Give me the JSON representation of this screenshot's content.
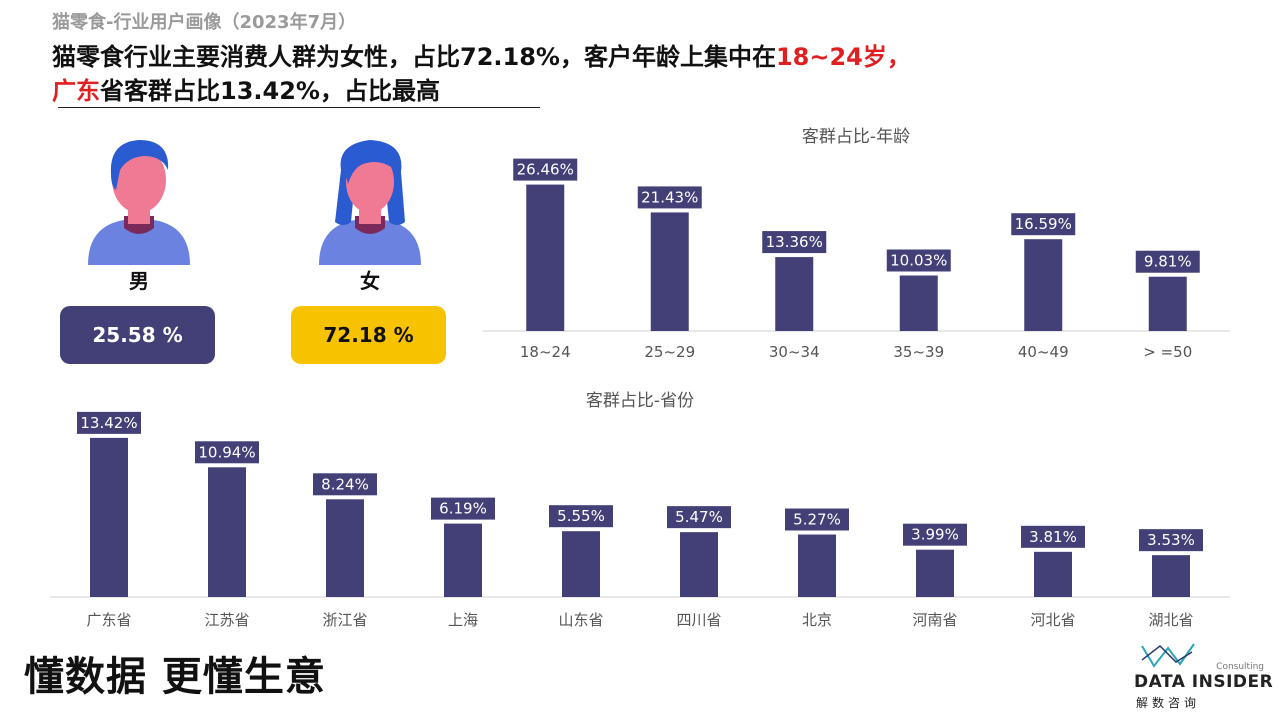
{
  "header": {
    "subtitle": "猫零食-行业用户画像（2023年7月）",
    "headline_part1": "猫零食行业主要消费人群为女性，占比72.18%，客户年龄上集中在",
    "headline_highlight1": "18~24岁，",
    "headline_highlight2": "广东",
    "headline_part2": "省客群占比13.42%，占比最高"
  },
  "gender": {
    "male_label": "男",
    "male_value": "25.58 %",
    "female_label": "女",
    "female_value": "72.18 %"
  },
  "colors": {
    "bar": "#434078",
    "female_accent": "#f7c300",
    "highlight_red": "#e02020"
  },
  "chart_data": [
    {
      "type": "bar",
      "title": "客群占比-年龄",
      "categories": [
        "18~24",
        "25~29",
        "30~34",
        "35~39",
        "40~49",
        "> =50"
      ],
      "values": [
        26.46,
        21.43,
        13.36,
        10.03,
        16.59,
        9.81
      ],
      "value_labels": [
        "26.46%",
        "21.43%",
        "13.36%",
        "10.03%",
        "16.59%",
        "9.81%"
      ],
      "ylim": [
        0,
        30
      ],
      "grid": false,
      "legend": "none"
    },
    {
      "type": "bar",
      "title": "客群占比-省份",
      "categories": [
        "广东省",
        "江苏省",
        "浙江省",
        "上海",
        "山东省",
        "四川省",
        "北京",
        "河南省",
        "河北省",
        "湖北省"
      ],
      "values": [
        13.42,
        10.94,
        8.24,
        6.19,
        5.55,
        5.47,
        5.27,
        3.99,
        3.81,
        3.53
      ],
      "value_labels": [
        "13.42%",
        "10.94%",
        "8.24%",
        "6.19%",
        "5.55%",
        "5.47%",
        "5.27%",
        "3.99%",
        "3.81%",
        "3.53%"
      ],
      "ylim": [
        0,
        14
      ],
      "grid": false,
      "legend": "none"
    }
  ],
  "footer": {
    "slogan": "懂数据 更懂生意",
    "logo_name": "DATA INSIDER",
    "logo_consulting": "Consulting",
    "logo_cn": "解数咨询"
  }
}
